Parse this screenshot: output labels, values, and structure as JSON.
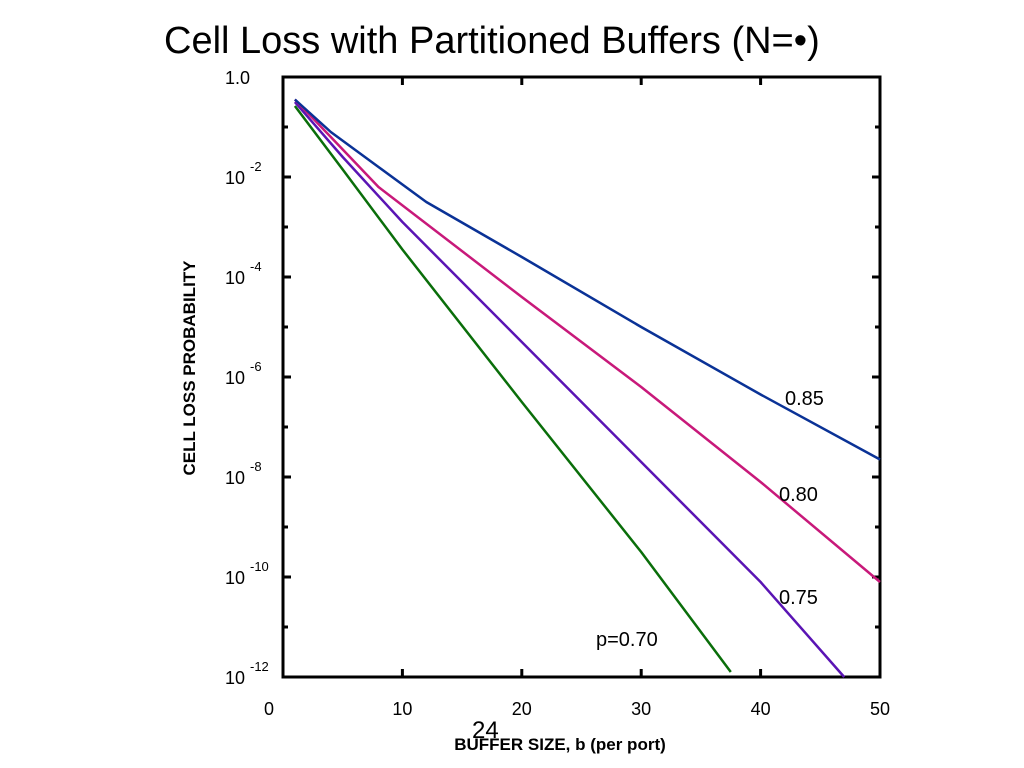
{
  "slide": {
    "page_number": "24"
  },
  "chart_data": {
    "type": "line",
    "title": "Cell Loss with Partitioned Buffers (N=",
    "title_symbol": "•",
    "xlabel": "BUFFER SIZE, b (per port)",
    "ylabel": "CELL LOSS PROBABILITY",
    "xlim": [
      0,
      50
    ],
    "ylim_log10": [
      -12,
      0
    ],
    "y_scale": "log",
    "x_ticks": [
      0,
      10,
      20,
      30,
      40,
      50
    ],
    "x_tick_labels": [
      "0",
      "10",
      "20",
      "30",
      "40",
      "50"
    ],
    "y_ticks": [
      {
        "exp": 0,
        "base": "1.0",
        "sup": ""
      },
      {
        "exp": -2,
        "base": "10",
        "sup": "-2"
      },
      {
        "exp": -4,
        "base": "10",
        "sup": "-4"
      },
      {
        "exp": -6,
        "base": "10",
        "sup": "-6"
      },
      {
        "exp": -8,
        "base": "10",
        "sup": "-8"
      },
      {
        "exp": -10,
        "base": "10",
        "sup": "-10"
      },
      {
        "exp": -12,
        "base": "10",
        "sup": "-12"
      }
    ],
    "grid": false,
    "series": [
      {
        "name": "p=0.70",
        "color": "#0a6e0a",
        "points": [
          [
            1,
            -0.58
          ],
          [
            5,
            -1.85
          ],
          [
            10,
            -3.45
          ],
          [
            20,
            -6.5
          ],
          [
            30,
            -9.5
          ],
          [
            37.5,
            -11.9
          ]
        ]
      },
      {
        "name": "0.75",
        "color": "#5a14b4",
        "points": [
          [
            1,
            -0.5
          ],
          [
            5,
            -1.6
          ],
          [
            10,
            -2.9
          ],
          [
            20,
            -5.3
          ],
          [
            30,
            -7.7
          ],
          [
            40,
            -10.1
          ],
          [
            47,
            -12.0
          ]
        ]
      },
      {
        "name": "0.80",
        "color": "#c8197a",
        "points": [
          [
            1,
            -0.45
          ],
          [
            4,
            -1.2
          ],
          [
            8,
            -2.2
          ],
          [
            20,
            -4.4
          ],
          [
            30,
            -6.2
          ],
          [
            40,
            -8.1
          ],
          [
            50,
            -10.1
          ]
        ]
      },
      {
        "name": "0.85",
        "color": "#0a3296",
        "points": [
          [
            1,
            -0.45
          ],
          [
            4,
            -1.1
          ],
          [
            8,
            -1.8
          ],
          [
            12,
            -2.5
          ],
          [
            20,
            -3.6
          ],
          [
            30,
            -5.0
          ],
          [
            40,
            -6.35
          ],
          [
            50,
            -7.65
          ]
        ]
      }
    ],
    "annotations": [
      "0.85",
      "0.80",
      "0.75",
      "p=0.70"
    ]
  }
}
